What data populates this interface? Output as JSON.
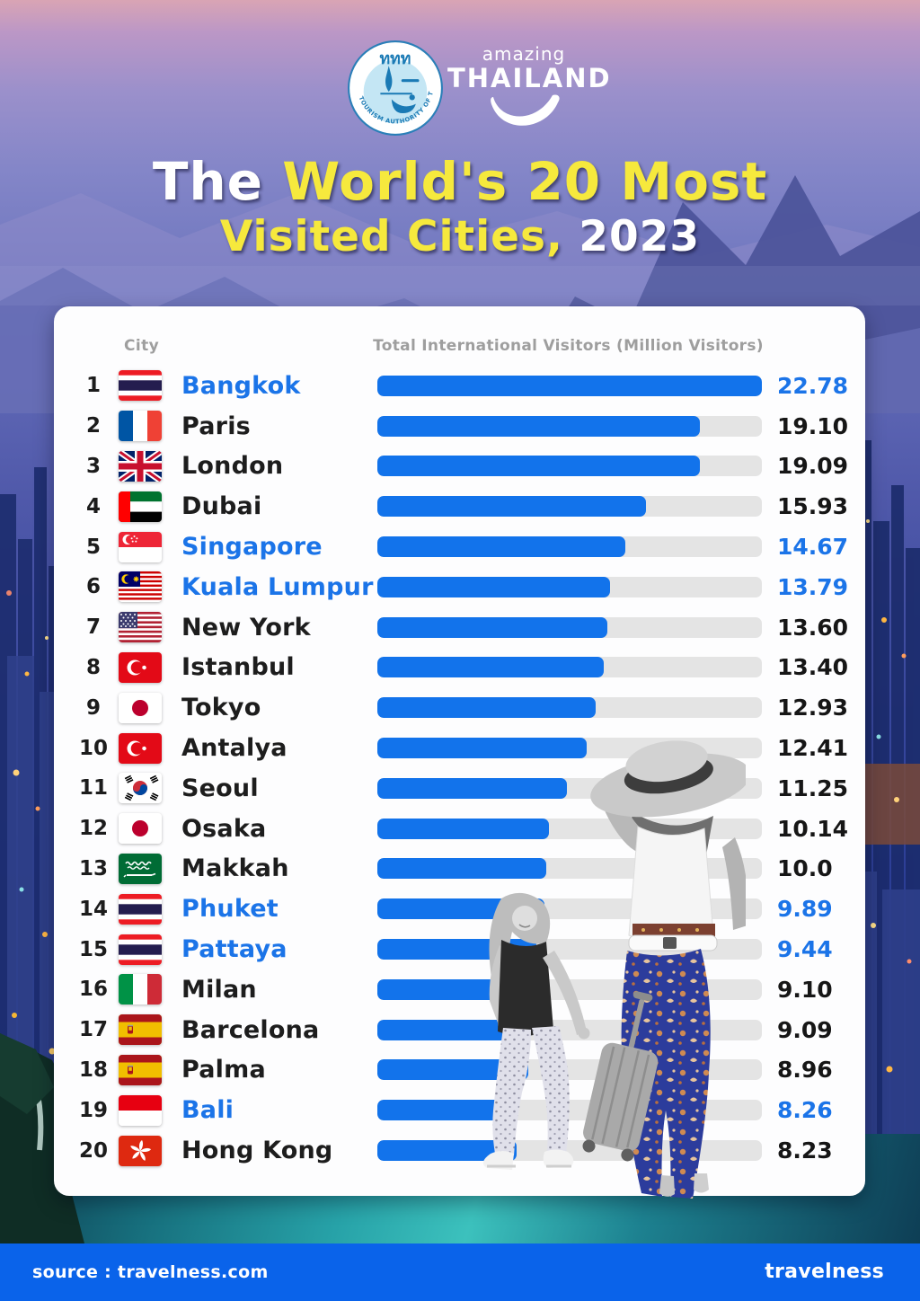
{
  "logos": {
    "tat": {
      "thai": "ททท",
      "ring": "TOURISM AUTHORITY OF THAILAND"
    },
    "amazing_thailand": {
      "top": "amazing",
      "bottom": "THAILAND"
    }
  },
  "title": {
    "l1_white": "The ",
    "l1_yellow": "World's 20 Most",
    "l2_yellow": "Visited Cities,",
    "l2_white": " 2023"
  },
  "table": {
    "col_city": "City",
    "col_visitors": "Total International Visitors (Million Visitors)"
  },
  "chart_data": {
    "type": "bar",
    "title": "The World's 20 Most Visited Cities, 2023",
    "xlabel": "Total International Visitors (Million Visitors)",
    "orientation": "horizontal",
    "max_value": 22.78,
    "categories": [
      "Bangkok",
      "Paris",
      "London",
      "Dubai",
      "Singapore",
      "Kuala Lumpur",
      "New York",
      "Istanbul",
      "Tokyo",
      "Antalya",
      "Seoul",
      "Osaka",
      "Makkah",
      "Phuket",
      "Pattaya",
      "Milan",
      "Barcelona",
      "Palma",
      "Bali",
      "Hong Kong"
    ],
    "values": [
      22.78,
      19.1,
      19.09,
      15.93,
      14.67,
      13.79,
      13.6,
      13.4,
      12.93,
      12.41,
      11.25,
      10.14,
      10.0,
      9.89,
      9.44,
      9.1,
      9.09,
      8.96,
      8.26,
      8.23
    ],
    "rows": [
      {
        "rank": "1",
        "city": "Bangkok",
        "flag": "thailand",
        "value": "22.78",
        "highlight": true
      },
      {
        "rank": "2",
        "city": "Paris",
        "flag": "france",
        "value": "19.10",
        "highlight": false
      },
      {
        "rank": "3",
        "city": "London",
        "flag": "uk",
        "value": "19.09",
        "highlight": false
      },
      {
        "rank": "4",
        "city": "Dubai",
        "flag": "uae",
        "value": "15.93",
        "highlight": false
      },
      {
        "rank": "5",
        "city": "Singapore",
        "flag": "singapore",
        "value": "14.67",
        "highlight": true
      },
      {
        "rank": "6",
        "city": "Kuala Lumpur",
        "flag": "malaysia",
        "value": "13.79",
        "highlight": true
      },
      {
        "rank": "7",
        "city": "New York",
        "flag": "usa",
        "value": "13.60",
        "highlight": false
      },
      {
        "rank": "8",
        "city": "Istanbul",
        "flag": "turkey",
        "value": "13.40",
        "highlight": false
      },
      {
        "rank": "9",
        "city": "Tokyo",
        "flag": "japan",
        "value": "12.93",
        "highlight": false
      },
      {
        "rank": "10",
        "city": "Antalya",
        "flag": "turkey",
        "value": "12.41",
        "highlight": false
      },
      {
        "rank": "11",
        "city": "Seoul",
        "flag": "south-korea",
        "value": "11.25",
        "highlight": false
      },
      {
        "rank": "12",
        "city": "Osaka",
        "flag": "japan",
        "value": "10.14",
        "highlight": false
      },
      {
        "rank": "13",
        "city": "Makkah",
        "flag": "saudi-arabia",
        "value": "10.0",
        "highlight": false
      },
      {
        "rank": "14",
        "city": "Phuket",
        "flag": "thailand",
        "value": "9.89",
        "highlight": true
      },
      {
        "rank": "15",
        "city": "Pattaya",
        "flag": "thailand",
        "value": "9.44",
        "highlight": true
      },
      {
        "rank": "16",
        "city": "Milan",
        "flag": "italy",
        "value": "9.10",
        "highlight": false
      },
      {
        "rank": "17",
        "city": "Barcelona",
        "flag": "spain",
        "value": "9.09",
        "highlight": false
      },
      {
        "rank": "18",
        "city": "Palma",
        "flag": "spain",
        "value": "8.96",
        "highlight": false
      },
      {
        "rank": "19",
        "city": "Bali",
        "flag": "indonesia",
        "value": "8.26",
        "highlight": true
      },
      {
        "rank": "20",
        "city": "Hong Kong",
        "flag": "hong-kong",
        "value": "8.23",
        "highlight": false
      }
    ]
  },
  "footer": {
    "source": "source : travelness.com",
    "brand": "travelness"
  },
  "colors": {
    "bar_fill": "#1273eb",
    "bar_track": "#e4e4e4",
    "highlight_blue": "#1b74e8",
    "title_yellow": "#f6e93d",
    "footer_blue": "#0a63ea",
    "value_black": "#161616"
  }
}
